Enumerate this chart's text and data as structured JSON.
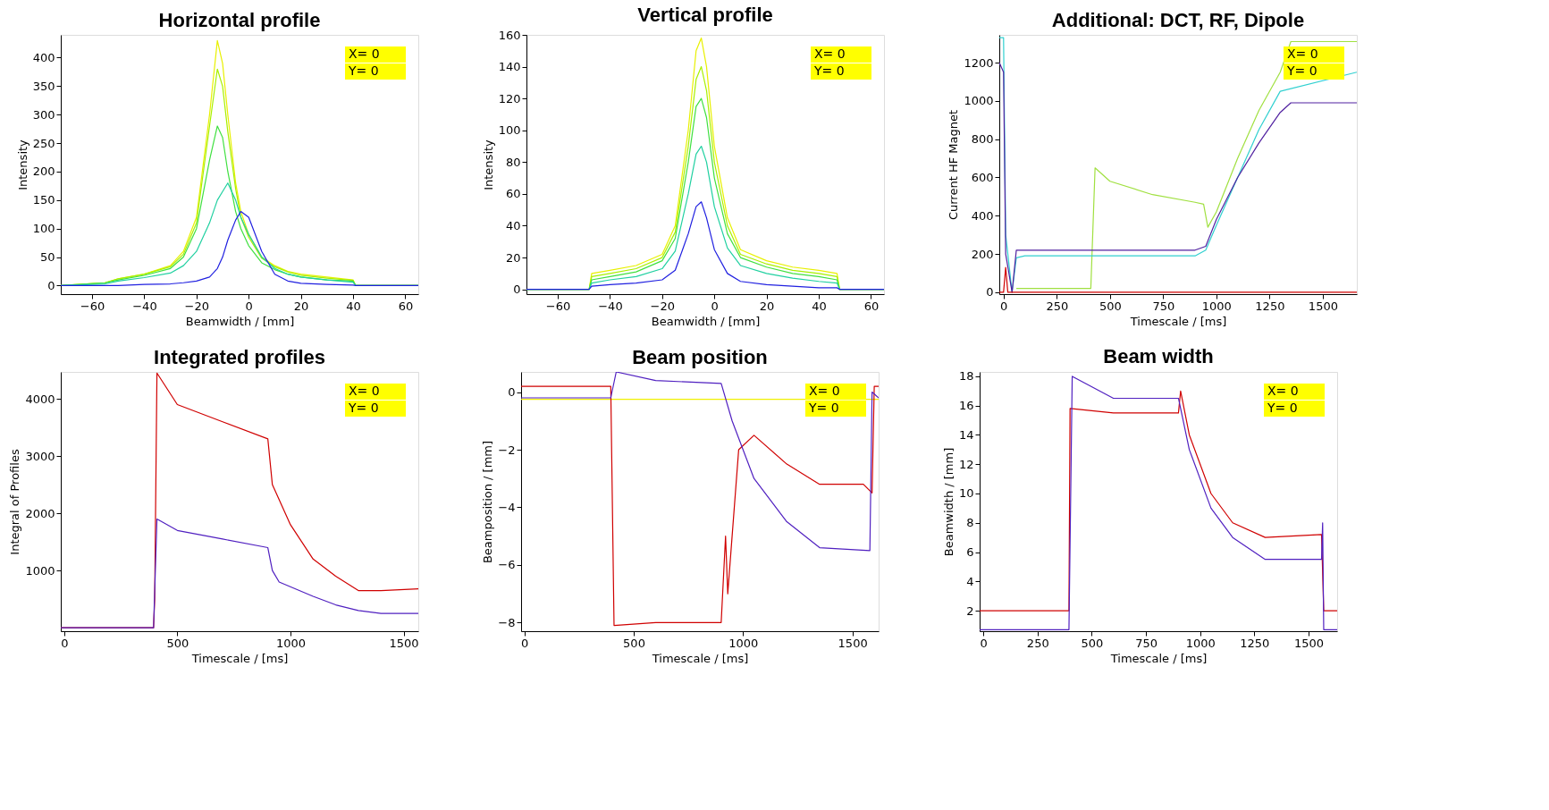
{
  "chart_data": [
    {
      "type": "line",
      "title": "Horizontal profile",
      "xlabel": "Beamwidth / [mm]",
      "ylabel": "Intensity",
      "xlim": [
        -72,
        65
      ],
      "ylim": [
        -15,
        440
      ],
      "xticks": [
        -60,
        -40,
        -20,
        0,
        20,
        40,
        60
      ],
      "yticks": [
        0,
        50,
        100,
        150,
        200,
        250,
        300,
        350,
        400
      ],
      "grid": false,
      "annotations": [
        "X= 0",
        "Y= 0"
      ],
      "x": [
        -72,
        -55,
        -50,
        -40,
        -30,
        -25,
        -20,
        -15,
        -12,
        -10,
        -8,
        -5,
        -3,
        0,
        5,
        10,
        15,
        20,
        30,
        40,
        41,
        65
      ],
      "series": [
        {
          "color": "#e8f000",
          "values": [
            0,
            5,
            12,
            20,
            35,
            60,
            120,
            300,
            430,
            390,
            300,
            180,
            130,
            90,
            50,
            35,
            25,
            20,
            15,
            10,
            0,
            0
          ]
        },
        {
          "color": "#a8f000",
          "values": [
            0,
            5,
            12,
            20,
            33,
            55,
            110,
            280,
            380,
            350,
            270,
            170,
            120,
            85,
            48,
            33,
            24,
            18,
            13,
            9,
            0,
            0
          ]
        },
        {
          "color": "#40e040",
          "values": [
            0,
            5,
            10,
            18,
            30,
            50,
            100,
            220,
            280,
            260,
            200,
            130,
            100,
            70,
            40,
            28,
            20,
            15,
            10,
            8,
            0,
            0
          ]
        },
        {
          "color": "#20d0a0",
          "values": [
            0,
            3,
            8,
            14,
            22,
            35,
            60,
            110,
            150,
            165,
            180,
            150,
            120,
            90,
            50,
            30,
            20,
            15,
            10,
            6,
            0,
            0
          ]
        },
        {
          "color": "#2020e0",
          "values": [
            0,
            0,
            0,
            2,
            3,
            5,
            8,
            15,
            30,
            50,
            80,
            115,
            130,
            120,
            60,
            20,
            8,
            4,
            2,
            1,
            0,
            0
          ]
        }
      ]
    },
    {
      "type": "line",
      "title": "Vertical profile",
      "xlabel": "Beamwidth / [mm]",
      "ylabel": "Intensity",
      "xlim": [
        -72,
        65
      ],
      "ylim": [
        -3,
        160
      ],
      "xticks": [
        -60,
        -40,
        -20,
        0,
        20,
        40,
        60
      ],
      "yticks": [
        0,
        20,
        40,
        60,
        80,
        100,
        120,
        140,
        160
      ],
      "grid": false,
      "annotations": [
        "X= 0",
        "Y= 0"
      ],
      "x": [
        -72,
        -48,
        -47,
        -40,
        -30,
        -20,
        -15,
        -10,
        -7,
        -5,
        -3,
        0,
        5,
        10,
        20,
        30,
        40,
        47,
        48,
        65
      ],
      "series": [
        {
          "color": "#e8f000",
          "values": [
            0,
            0,
            10,
            12,
            15,
            22,
            40,
            100,
            150,
            158,
            140,
            90,
            45,
            25,
            18,
            14,
            12,
            10,
            0,
            0
          ]
        },
        {
          "color": "#a8f000",
          "values": [
            0,
            0,
            8,
            10,
            13,
            20,
            36,
            90,
            132,
            140,
            125,
            80,
            40,
            22,
            16,
            12,
            10,
            8,
            0,
            0
          ]
        },
        {
          "color": "#40e040",
          "values": [
            0,
            0,
            6,
            8,
            11,
            18,
            32,
            80,
            115,
            120,
            108,
            70,
            35,
            20,
            14,
            10,
            8,
            6,
            0,
            0
          ]
        },
        {
          "color": "#20d0a0",
          "values": [
            0,
            0,
            4,
            6,
            8,
            13,
            24,
            60,
            85,
            90,
            80,
            52,
            26,
            15,
            10,
            7,
            5,
            4,
            0,
            0
          ]
        },
        {
          "color": "#2020e0",
          "values": [
            0,
            0,
            2,
            3,
            4,
            6,
            12,
            35,
            52,
            55,
            45,
            25,
            10,
            5,
            3,
            2,
            1,
            1,
            0,
            0
          ]
        }
      ]
    },
    {
      "type": "line",
      "title": "Additional: DCT, RF, Dipole",
      "xlabel": "Timescale / [ms]",
      "ylabel": "Current  HF  Magnet",
      "xlim": [
        -20,
        1660
      ],
      "ylim": [
        -10,
        1345
      ],
      "xticks": [
        0,
        250,
        500,
        750,
        1000,
        1250,
        1500
      ],
      "yticks": [
        0,
        200,
        400,
        600,
        800,
        1000,
        1200
      ],
      "grid": false,
      "annotations": [
        "X= 0",
        "Y= 0"
      ],
      "series": [
        {
          "color": "#a0e040",
          "x": [
            60,
            400,
            410,
            430,
            500,
            700,
            900,
            940,
            960,
            1000,
            1100,
            1200,
            1300,
            1350,
            1660
          ],
          "values": [
            20,
            20,
            20,
            650,
            580,
            510,
            470,
            460,
            340,
            420,
            700,
            950,
            1150,
            1310,
            1310
          ]
        },
        {
          "color": "#30d0d0",
          "x": [
            -20,
            0,
            10,
            40,
            60,
            100,
            500,
            900,
            950,
            1000,
            1100,
            1200,
            1300,
            1660
          ],
          "values": [
            1330,
            1330,
            300,
            0,
            180,
            190,
            190,
            190,
            220,
            350,
            600,
            850,
            1050,
            1150
          ]
        },
        {
          "color": "#5020a0",
          "x": [
            -20,
            0,
            10,
            40,
            60,
            500,
            900,
            950,
            1000,
            1100,
            1200,
            1300,
            1350,
            1660
          ],
          "values": [
            1200,
            1150,
            200,
            0,
            220,
            220,
            220,
            240,
            380,
            600,
            780,
            940,
            990,
            990
          ]
        },
        {
          "color": "#d00000",
          "x": [
            -20,
            0,
            10,
            20,
            30,
            1660
          ],
          "values": [
            0,
            0,
            130,
            0,
            0,
            0
          ]
        }
      ]
    },
    {
      "type": "line",
      "title": "Integrated profiles",
      "xlabel": "Timescale / [ms]",
      "ylabel": "Integral of Profiles",
      "xlim": [
        -15,
        1565
      ],
      "ylim": [
        -60,
        4470
      ],
      "xticks": [
        0,
        500,
        1000,
        1500
      ],
      "yticks": [
        1000,
        2000,
        3000,
        4000
      ],
      "grid": false,
      "annotations": [
        "X= 0",
        "Y= 0"
      ],
      "series": [
        {
          "color": "#d00000",
          "x": [
            -15,
            395,
            400,
            410,
            500,
            700,
            900,
            920,
            1000,
            1100,
            1200,
            1300,
            1400,
            1565
          ],
          "values": [
            0,
            0,
            500,
            4450,
            3900,
            3600,
            3300,
            2500,
            1800,
            1200,
            900,
            650,
            650,
            680
          ]
        },
        {
          "color": "#5020c0",
          "x": [
            -15,
            395,
            410,
            500,
            700,
            900,
            920,
            950,
            1100,
            1200,
            1300,
            1400,
            1565
          ],
          "values": [
            0,
            0,
            1900,
            1700,
            1550,
            1400,
            1000,
            800,
            550,
            400,
            300,
            250,
            250
          ]
        }
      ]
    },
    {
      "type": "line",
      "title": "Beam position",
      "xlabel": "Timescale / [ms]",
      "ylabel": "Beamposition / [mm]",
      "xlim": [
        -15,
        1620
      ],
      "ylim": [
        -8.3,
        0.7
      ],
      "xticks": [
        0,
        500,
        1000,
        1500
      ],
      "yticks": [
        0,
        -2,
        -4,
        -6,
        -8
      ],
      "grid": false,
      "annotations": [
        "X= 0",
        "Y= 0"
      ],
      "series": [
        {
          "color": "#f0f000",
          "x": [
            -15,
            1620
          ],
          "values": [
            -0.25,
            -0.25
          ]
        },
        {
          "color": "#d00000",
          "x": [
            -15,
            395,
            410,
            600,
            900,
            920,
            930,
            980,
            1050,
            1200,
            1350,
            1550,
            1590,
            1600,
            1620
          ],
          "values": [
            0.2,
            0.2,
            -8.1,
            -8,
            -8,
            -5,
            -7,
            -2,
            -1.5,
            -2.5,
            -3.2,
            -3.2,
            -3.5,
            0.2,
            0.2
          ]
        },
        {
          "color": "#5020c0",
          "x": [
            -15,
            395,
            420,
            600,
            900,
            950,
            1050,
            1200,
            1350,
            1580,
            1590,
            1620
          ],
          "values": [
            -0.2,
            -0.2,
            0.7,
            0.4,
            0.3,
            -1,
            -3,
            -4.5,
            -5.4,
            -5.5,
            0,
            -0.2
          ]
        }
      ]
    },
    {
      "type": "line",
      "title": "Beam width",
      "xlabel": "Timescale / [ms]",
      "ylabel": "Beamwidth / [mm]",
      "xlim": [
        -17,
        1632
      ],
      "ylim": [
        0.6,
        18.3
      ],
      "xticks": [
        0,
        250,
        500,
        750,
        1000,
        1250,
        1500
      ],
      "yticks": [
        2,
        4,
        6,
        8,
        10,
        12,
        14,
        16,
        18
      ],
      "grid": false,
      "annotations": [
        "X= 0",
        "Y= 0"
      ],
      "series": [
        {
          "color": "#d00000",
          "x": [
            -17,
            395,
            400,
            600,
            900,
            910,
            950,
            1050,
            1150,
            1300,
            1560,
            1570,
            1632
          ],
          "values": [
            2,
            2,
            15.8,
            15.5,
            15.5,
            17,
            14,
            10,
            8,
            7,
            7.2,
            2,
            2
          ]
        },
        {
          "color": "#5020c0",
          "x": [
            -17,
            395,
            410,
            600,
            900,
            950,
            1050,
            1150,
            1300,
            1560,
            1565,
            1570,
            1632
          ],
          "values": [
            0.7,
            0.7,
            18,
            16.5,
            16.5,
            13,
            9,
            7,
            5.5,
            5.5,
            8,
            0.7,
            0.7
          ]
        }
      ]
    }
  ]
}
